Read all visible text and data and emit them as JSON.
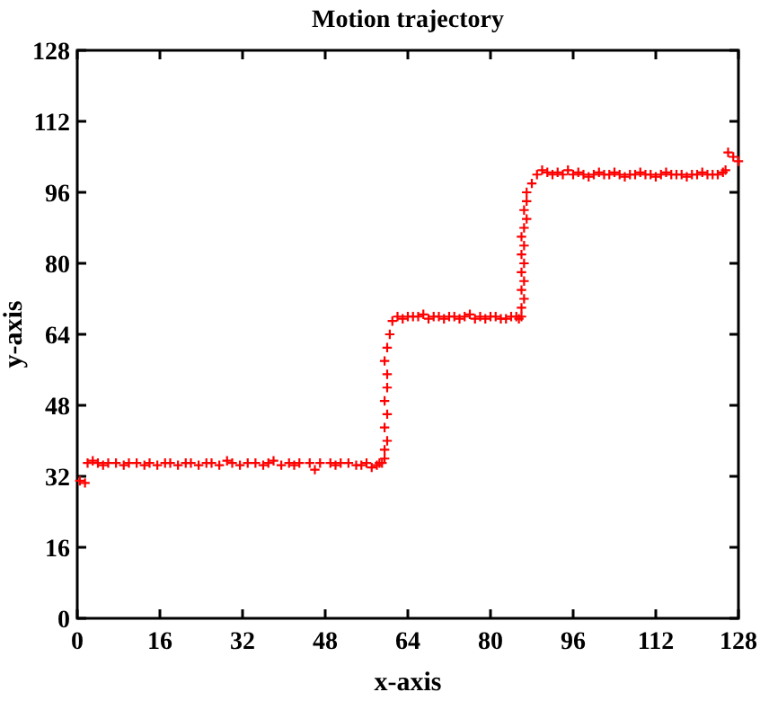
{
  "chart_data": {
    "type": "scatter",
    "title": "Motion trajectory",
    "xlabel": "x-axis",
    "ylabel": "y-axis",
    "xlim": [
      0,
      128
    ],
    "ylim": [
      0,
      128
    ],
    "xticks": [
      0,
      16,
      32,
      48,
      64,
      80,
      96,
      112,
      128
    ],
    "yticks": [
      0,
      16,
      32,
      48,
      64,
      80,
      96,
      112,
      128
    ],
    "grid": false,
    "marker": "cross",
    "series": [
      {
        "color": "#ff0000",
        "x": [
          0.5,
          1.5,
          2,
          3,
          4,
          5,
          6,
          7.5,
          9,
          10,
          11.5,
          13,
          14,
          15.5,
          17,
          18,
          19.5,
          21,
          22,
          23.5,
          25,
          26,
          27.5,
          29,
          30,
          31.5,
          33,
          34.5,
          36,
          37,
          38,
          39.5,
          41,
          42,
          43,
          45,
          46,
          47,
          49,
          50,
          51,
          52.5,
          54,
          55,
          56,
          57,
          58,
          58.5,
          59,
          59.5,
          59.5,
          60,
          59.5,
          60,
          59.5,
          60,
          60,
          59.5,
          60,
          60.5,
          61,
          62,
          63,
          64,
          65,
          66,
          67,
          68,
          69,
          70,
          71,
          72,
          73,
          74,
          75,
          76,
          77,
          78,
          79,
          80,
          81,
          82,
          83,
          84,
          85,
          85.5,
          86,
          86,
          86.5,
          86,
          86.5,
          86,
          86.5,
          86,
          86.5,
          86,
          86.5,
          87,
          86.5,
          87,
          87,
          88,
          89,
          90,
          91,
          92,
          93,
          94,
          95,
          96,
          97,
          98,
          99,
          100,
          101,
          102,
          103,
          104,
          105,
          106,
          107,
          108,
          109,
          110,
          111,
          112,
          113,
          114,
          115,
          116,
          117,
          118,
          119,
          120,
          121,
          122,
          123,
          124,
          125,
          125.5,
          126,
          127,
          128
        ],
        "values": [
          31,
          30.5,
          35,
          35.5,
          35,
          34.5,
          35,
          35,
          34.5,
          35,
          35,
          34.5,
          35,
          34.5,
          35,
          35,
          34.5,
          35,
          35,
          34.5,
          35,
          35,
          34.5,
          35.5,
          35,
          34.5,
          35,
          35,
          34.5,
          35,
          35.5,
          34.5,
          35,
          34.5,
          35,
          35,
          33.5,
          35,
          35,
          34.5,
          35,
          35,
          34.5,
          34.5,
          35,
          34,
          34.5,
          35,
          35,
          36,
          38,
          40,
          43,
          46,
          49,
          52,
          55,
          58,
          61,
          64,
          67,
          68,
          67.5,
          68,
          68,
          68,
          68.5,
          67.5,
          68,
          68,
          67.5,
          68,
          68,
          67.5,
          68,
          68.5,
          67.5,
          68,
          67.5,
          68,
          68,
          67.5,
          67.5,
          68,
          68,
          67.5,
          68,
          70,
          72,
          74,
          76,
          78,
          80,
          82,
          84,
          86,
          88,
          90,
          92,
          94,
          96,
          98,
          100,
          101,
          100.5,
          100,
          100.5,
          100,
          101,
          100,
          100.5,
          100,
          99.5,
          100,
          100.5,
          100,
          100,
          100.5,
          100,
          99.5,
          100,
          100,
          100.5,
          100,
          100,
          99.5,
          100,
          100.5,
          100,
          100,
          100,
          99.5,
          100,
          100,
          100.5,
          100,
          100,
          100,
          100.5,
          101,
          105,
          104,
          103
        ]
      }
    ]
  }
}
